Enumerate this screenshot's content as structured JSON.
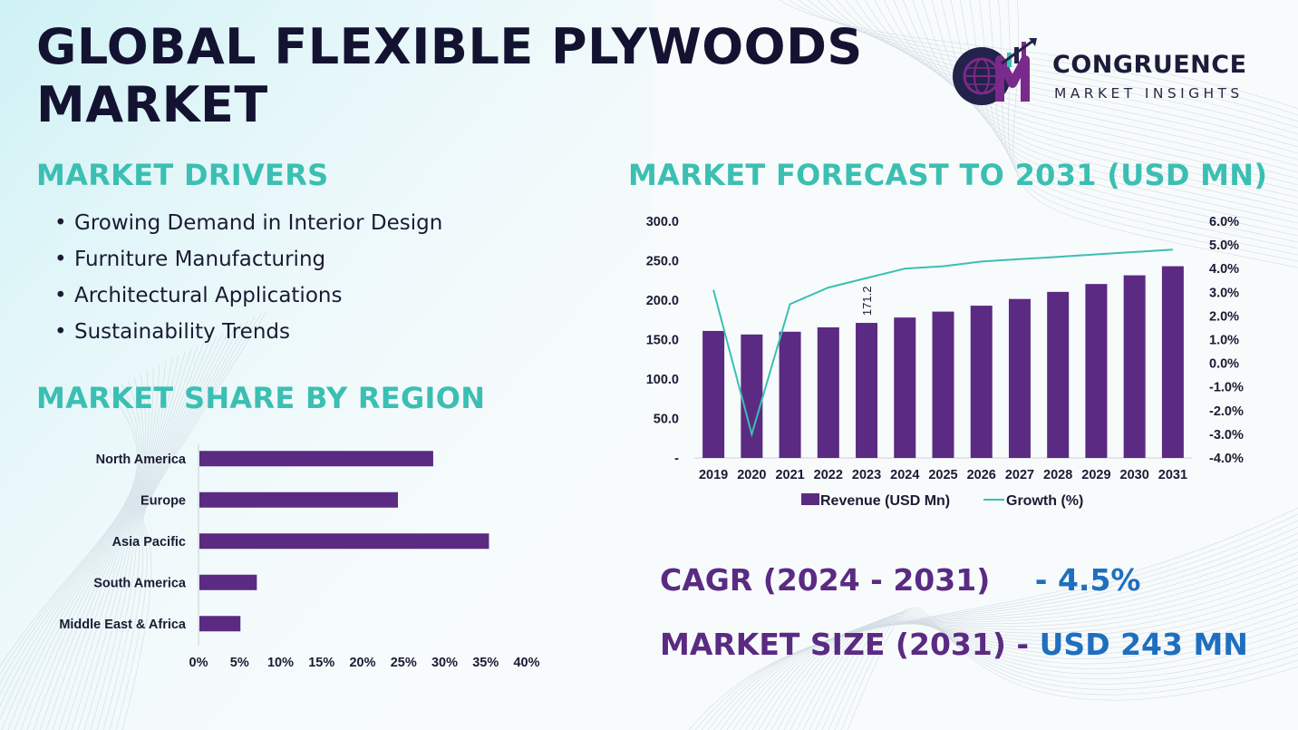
{
  "page": {
    "title_line1": "GLOBAL FLEXIBLE PLYWOODS",
    "title_line2": "MARKET"
  },
  "logo": {
    "name": "CONGRUENCE",
    "subtitle": "MARKET INSIGHTS",
    "colors": {
      "purple": "#7a2a8a",
      "navy": "#22224a",
      "green": "#3bbfb2"
    }
  },
  "drivers": {
    "heading": "MARKET DRIVERS",
    "items": [
      "Growing Demand in Interior Design",
      "Furniture Manufacturing",
      "Architectural Applications",
      "Sustainability Trends"
    ]
  },
  "region": {
    "heading": "MARKET SHARE BY REGION"
  },
  "forecast": {
    "heading": "MARKET FORECAST TO 2031 (USD MN)"
  },
  "kpis": {
    "cagr_label": "CAGR (2024 - 2031)",
    "cagr_value": "- 4.5%",
    "size_label": "MARKET SIZE (2031)",
    "size_sep": "-",
    "size_value": "USD 243 MN"
  },
  "colors": {
    "accent_teal": "#3bbfb2",
    "bar_purple": "#5b2a82",
    "line_teal": "#3bbfb2",
    "kpi_blue": "#1e6fbf"
  },
  "chart_data": [
    {
      "type": "bar",
      "orientation": "horizontal",
      "categories": [
        "North America",
        "Europe",
        "Asia Pacific",
        "South America",
        "Middle East & Africa"
      ],
      "values": [
        28.5,
        24.2,
        35.3,
        7.0,
        5.0
      ],
      "xlim": [
        0,
        40
      ],
      "ticks": [
        "0%",
        "5%",
        "10%",
        "15%",
        "20%",
        "25%",
        "30%",
        "35%",
        "40%"
      ],
      "grid": false,
      "legend": "none"
    },
    {
      "type": "bar",
      "categories": [
        "2019",
        "2020",
        "2021",
        "2022",
        "2023",
        "2024",
        "2025",
        "2026",
        "2027",
        "2028",
        "2029",
        "2030",
        "2031"
      ],
      "series": [
        {
          "name": "Revenue (USD Mn)",
          "type": "bar",
          "axis": "left",
          "values": [
            161.0,
            156.5,
            160.0,
            165.5,
            171.2,
            178.0,
            185.5,
            193.0,
            201.5,
            210.5,
            220.5,
            231.5,
            243.0
          ]
        },
        {
          "name": "Growth (%)",
          "type": "line",
          "axis": "right",
          "values": [
            3.1,
            -3.0,
            2.5,
            3.2,
            3.6,
            4.0,
            4.1,
            4.3,
            4.4,
            4.5,
            4.6,
            4.7,
            4.8
          ]
        }
      ],
      "data_labels": [
        {
          "category": "2023",
          "text": "171.2"
        }
      ],
      "ylim_left": [
        0,
        300
      ],
      "yticks_left": [
        "-",
        "50.0",
        "100.0",
        "150.0",
        "200.0",
        "250.0",
        "300.0"
      ],
      "ylim_right": [
        -4,
        6
      ],
      "yticks_right": [
        "-4.0%",
        "-3.0%",
        "-2.0%",
        "-1.0%",
        "0.0%",
        "1.0%",
        "2.0%",
        "3.0%",
        "4.0%",
        "5.0%",
        "6.0%"
      ],
      "grid": false,
      "legend": "bottom"
    }
  ]
}
